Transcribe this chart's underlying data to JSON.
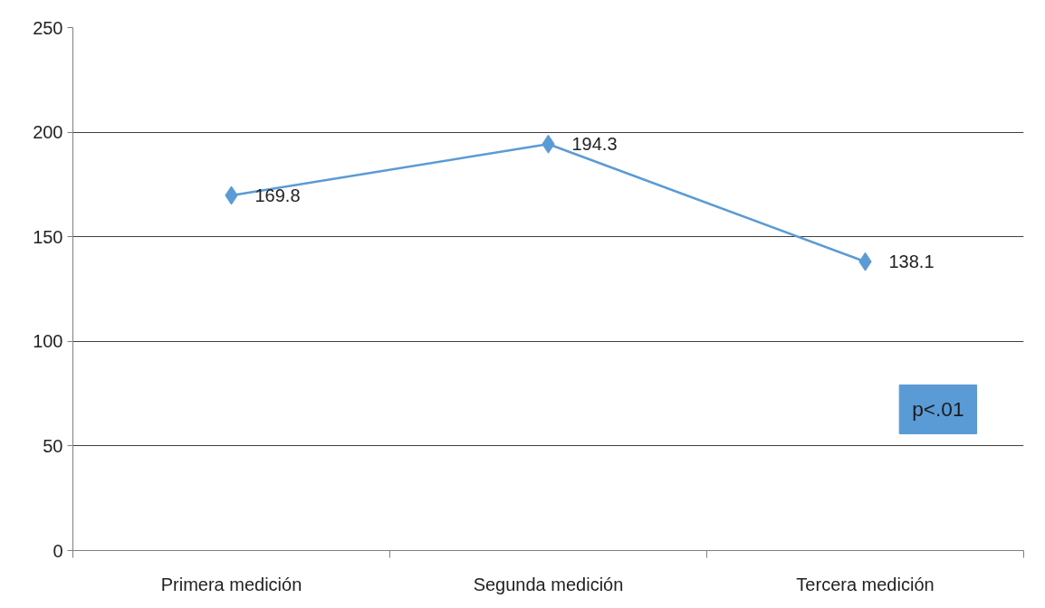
{
  "chart_data": {
    "type": "line",
    "categories": [
      "Primera medición",
      "Segunda medición",
      "Tercera medición"
    ],
    "series": [
      {
        "color": "#5b9bd5",
        "values": [
          169.8,
          194.3,
          138.1
        ]
      }
    ],
    "ylim": [
      0,
      250
    ],
    "yticks": [
      0,
      50,
      100,
      150,
      200,
      250
    ],
    "grid": "y",
    "marker": "diamond",
    "line_style": "solid",
    "data_labels": true,
    "annotations": [
      "p<.01"
    ]
  }
}
